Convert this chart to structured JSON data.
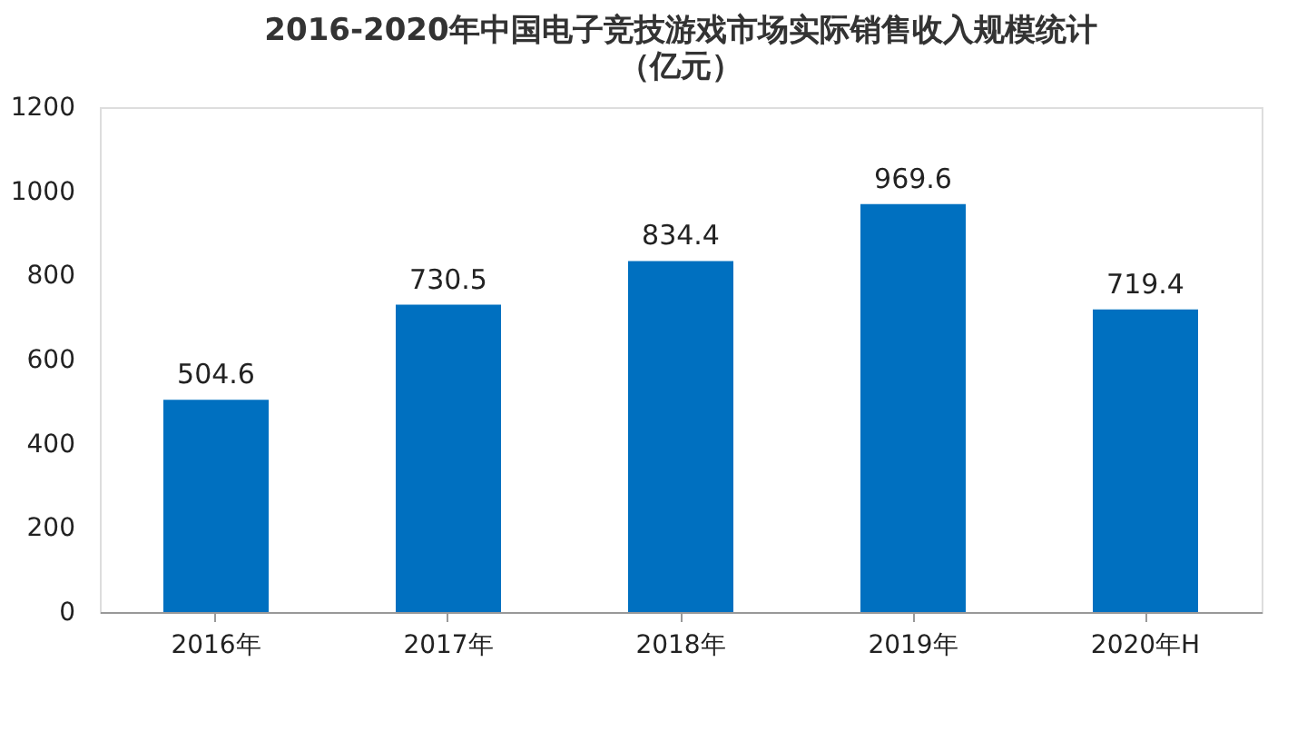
{
  "chart_data": {
    "type": "bar",
    "title": "2016-2020年中国电子竞技游戏市场实际销售收入规模统计",
    "subtitle": "（亿元）",
    "categories": [
      "2016年",
      "2017年",
      "2018年",
      "2019年",
      "2020年H"
    ],
    "values": [
      504.6,
      730.5,
      834.4,
      969.6,
      719.4
    ],
    "color": "#0070c0",
    "ylim": [
      0,
      1200
    ],
    "yticks": [
      0,
      200,
      400,
      600,
      800,
      1000,
      1200
    ],
    "data_labels": true,
    "grid": false
  }
}
